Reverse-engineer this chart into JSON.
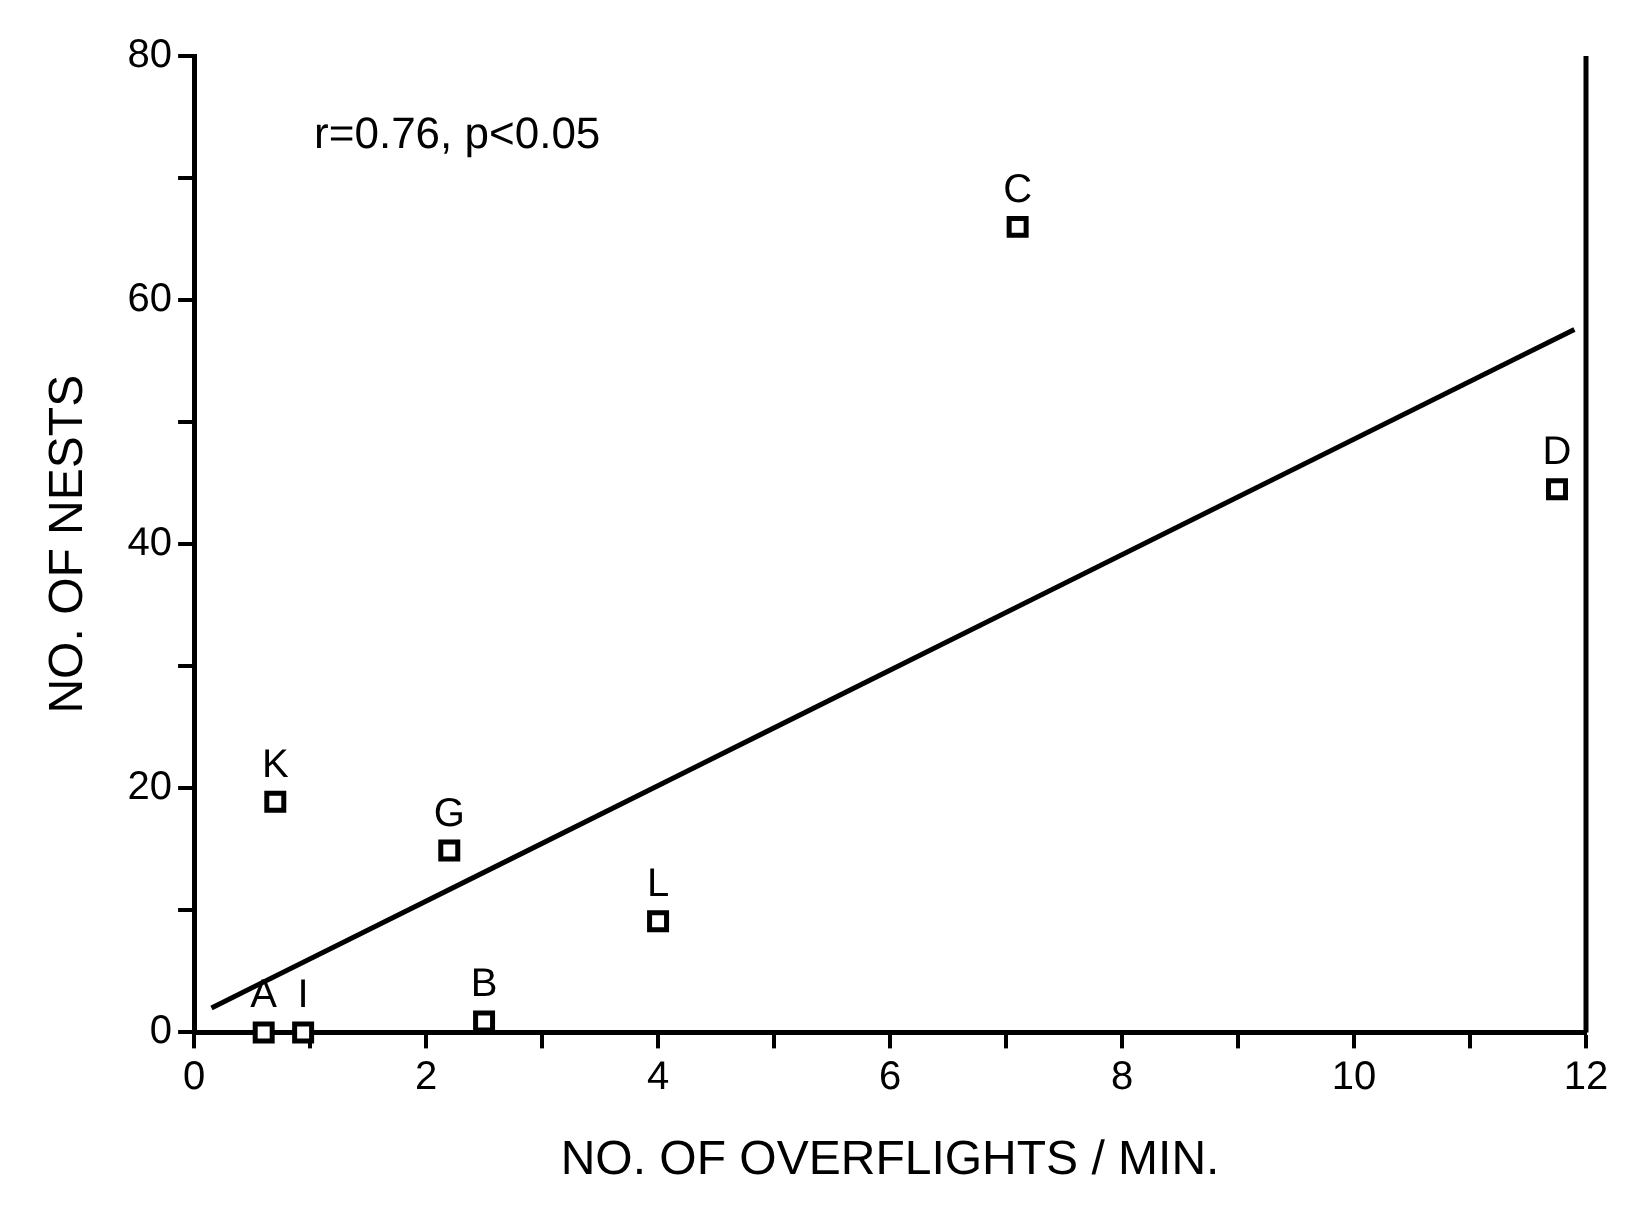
{
  "chart_data": {
    "type": "scatter",
    "xlabel": "NO. OF OVERFLIGHTS / MIN.",
    "ylabel": "NO. OF NESTS",
    "x": [
      0.6,
      0.94,
      2.5,
      7.1,
      11.75,
      2.2,
      0.7,
      4.0
    ],
    "values": [
      0,
      0,
      0.9,
      66,
      44.5,
      14.9,
      18.9,
      9.1
    ],
    "color": "#000000",
    "marker": "square",
    "series": [
      {
        "type": "line",
        "x": [
          0.15,
          11.9
        ],
        "values": [
          2,
          57.6
        ],
        "color": "#000000",
        "line_style": "solid",
        "marker": "none"
      }
    ],
    "xlim": [
      0,
      12
    ],
    "ylim": [
      0,
      80
    ],
    "xticks": [
      0,
      {
        "value": 1,
        "label": null
      },
      2,
      {
        "value": 3,
        "label": null
      },
      4,
      {
        "value": 5,
        "label": null
      },
      6,
      {
        "value": 7,
        "label": null
      },
      8,
      {
        "value": 9,
        "label": null
      },
      10,
      {
        "value": 11,
        "label": null
      },
      12
    ],
    "yticks": [
      0,
      {
        "value": 10,
        "label": null
      },
      20,
      {
        "value": 30,
        "label": null
      },
      40,
      {
        "value": 50,
        "label": null
      },
      60,
      {
        "value": 70,
        "label": null
      },
      80
    ],
    "grid": false,
    "legend": false,
    "annotations": [
      "r=0.76, p<0.05",
      {
        "text": "A",
        "x": 0.6,
        "y": 0
      },
      {
        "text": "I",
        "x": 0.94,
        "y": 0
      },
      {
        "text": "B",
        "x": 2.5,
        "y": 0.9
      },
      {
        "text": "C",
        "x": 7.1,
        "y": 66
      },
      {
        "text": "D",
        "x": 11.75,
        "y": 44.5
      },
      {
        "text": "G",
        "x": 2.2,
        "y": 14.9
      },
      {
        "text": "K",
        "x": 0.7,
        "y": 18.9
      },
      {
        "text": "L",
        "x": 4.0,
        "y": 9.1
      }
    ]
  }
}
